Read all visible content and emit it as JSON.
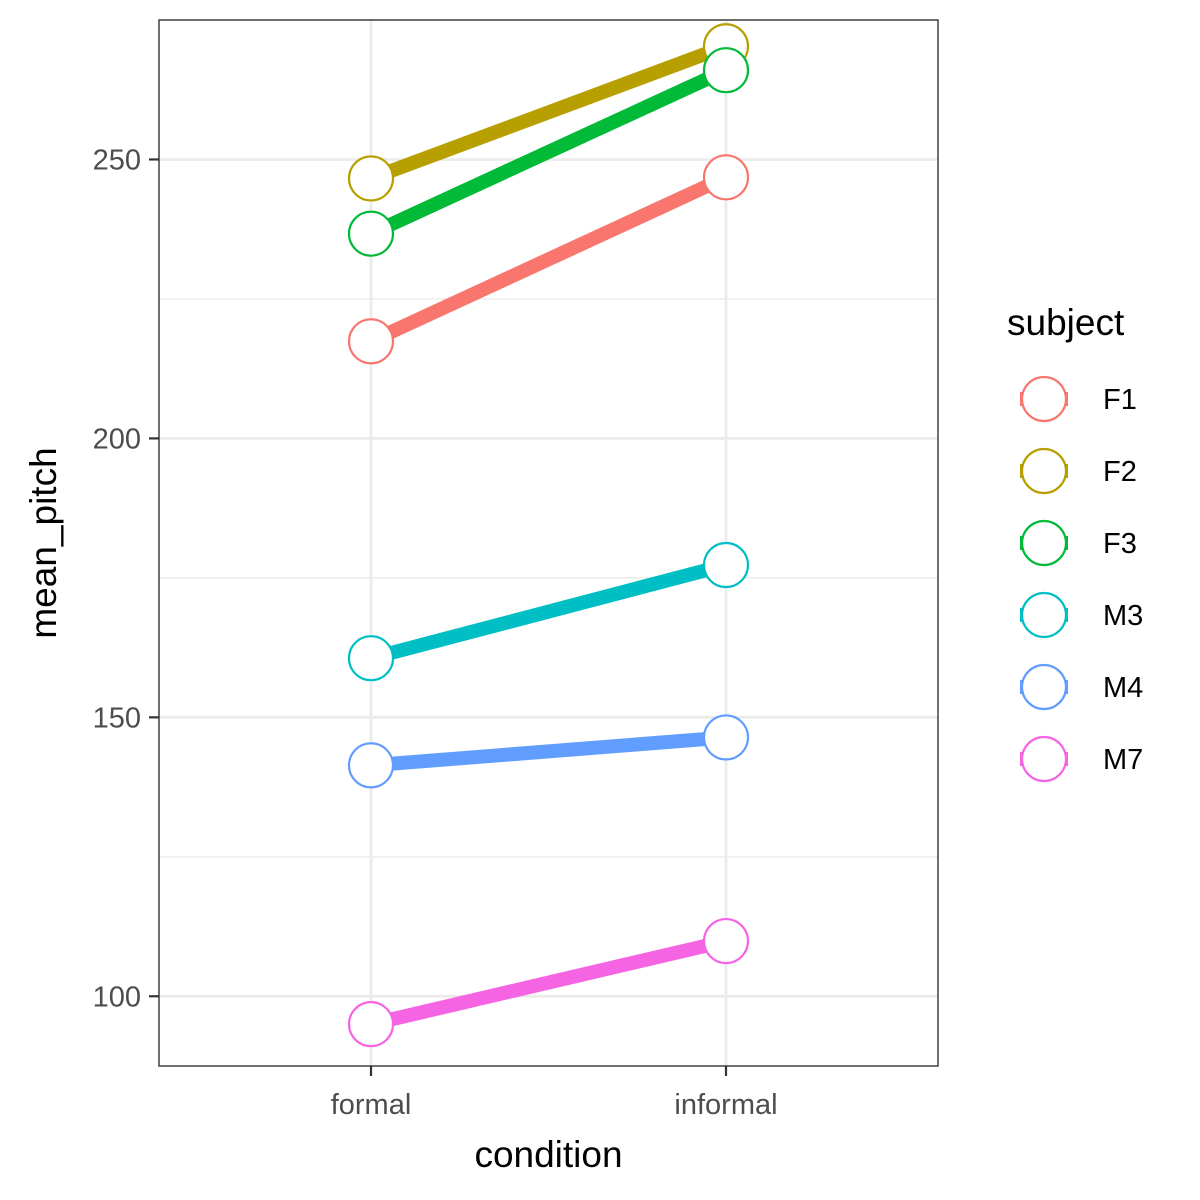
{
  "chart_data": {
    "type": "line",
    "title": "",
    "xlabel": "condition",
    "ylabel": "mean_pitch",
    "categories": [
      "formal",
      "informal"
    ],
    "ylim": [
      87.5,
      275
    ],
    "yticks": [
      100,
      150,
      200,
      250
    ],
    "y_minor_ticks": [
      125,
      175,
      225,
      275
    ],
    "grid": true,
    "legend": {
      "title": "subject",
      "position": "right"
    },
    "series": [
      {
        "name": "F1",
        "color": "#F8766D",
        "values": [
          217.4,
          246.8
        ]
      },
      {
        "name": "F2",
        "color": "#B79F00",
        "values": [
          246.6,
          270.3
        ]
      },
      {
        "name": "F3",
        "color": "#00BA38",
        "values": [
          236.7,
          266.0
        ]
      },
      {
        "name": "M3",
        "color": "#00BFC4",
        "values": [
          160.6,
          177.3
        ]
      },
      {
        "name": "M4",
        "color": "#619CFF",
        "values": [
          141.4,
          146.4
        ]
      },
      {
        "name": "M7",
        "color": "#F564E3",
        "values": [
          95.0,
          109.9
        ]
      }
    ]
  }
}
